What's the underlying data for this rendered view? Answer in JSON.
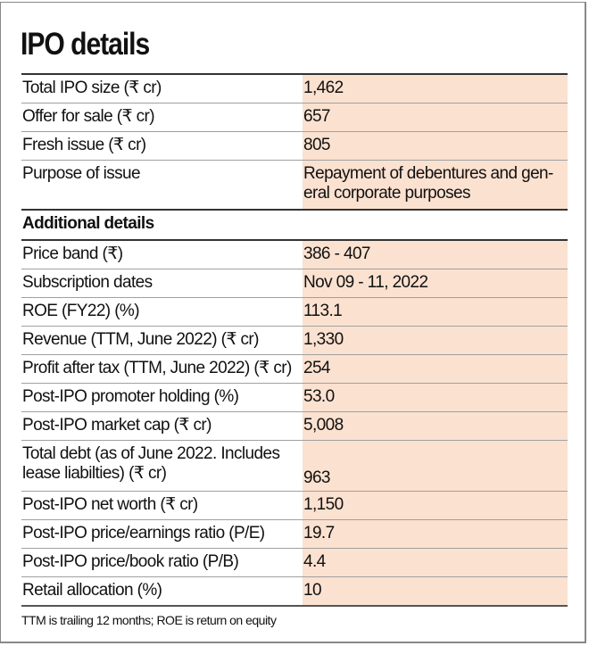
{
  "title": "IPO details",
  "rows": [
    {
      "label": "Total IPO size (₹ cr)",
      "value": "1,462"
    },
    {
      "label": "Offer for sale (₹ cr)",
      "value": "657"
    },
    {
      "label": "Fresh issue (₹ cr)",
      "value": "805"
    },
    {
      "label": "Purpose of issue",
      "value": "Repayment of debentures and gen-eral corporate purposes"
    }
  ],
  "section_heading": "Additional details",
  "additional_rows": [
    {
      "label": "Price band (₹)",
      "value": "386 - 407"
    },
    {
      "label": "Subscription dates",
      "value": "Nov 09 - 11, 2022"
    },
    {
      "label": "ROE (FY22) (%)",
      "value": "113.1"
    },
    {
      "label": "Revenue (TTM, June 2022) (₹ cr)",
      "value": "1,330"
    },
    {
      "label": "Profit after tax (TTM, June 2022) (₹ cr)",
      "value": "254"
    },
    {
      "label": "Post-IPO promoter holding (%)",
      "value": "53.0"
    },
    {
      "label": "Post-IPO market cap (₹ cr)",
      "value": "5,008"
    },
    {
      "label": "Total debt (as of June 2022. Includes lease liabilties) (₹ cr)",
      "value": "963"
    },
    {
      "label": "Post-IPO net worth (₹ cr)",
      "value": "1,150"
    },
    {
      "label": "Post-IPO price/earnings ratio (P/E)",
      "value": "19.7"
    },
    {
      "label": "Post-IPO price/book ratio (P/B)",
      "value": "4.4"
    },
    {
      "label": "Retail allocation (%)",
      "value": "10"
    }
  ],
  "footnote": "TTM is trailing 12 months; ROE is return on equity",
  "colors": {
    "value_column_bg": "#fbe1d0",
    "rule": "#333333"
  }
}
